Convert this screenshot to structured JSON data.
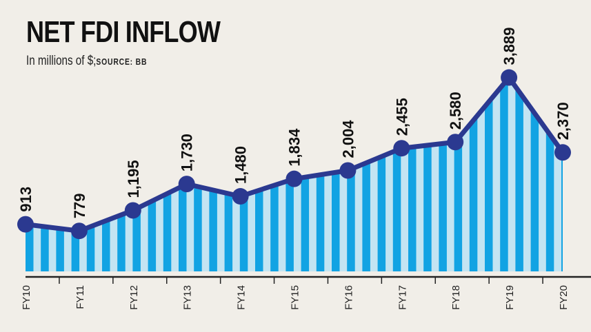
{
  "chart_data": {
    "type": "area",
    "title": "NET FDI INFLOW",
    "subtitle": "In millions of $;",
    "source": "SOURCE: BB",
    "categories": [
      "FY10",
      "FY11",
      "FY12",
      "FY13",
      "FY14",
      "FY15",
      "FY16",
      "FY17",
      "FY18",
      "FY19",
      "FY20"
    ],
    "values": [
      913,
      779,
      1195,
      1730,
      1480,
      1834,
      2004,
      2455,
      2580,
      3889,
      2370
    ],
    "value_labels": [
      "913",
      "779",
      "1,195",
      "1,730",
      "1,480",
      "1,834",
      "2,004",
      "2,455",
      "2,580",
      "3,889",
      "2,370"
    ],
    "xlabel": "",
    "ylabel": "",
    "ylim": [
      0,
      5400
    ],
    "colors": {
      "line": "#2b3990",
      "stripe_dark": "#12a3e3",
      "stripe_light": "#c3e4f2",
      "background": "#f1eee8"
    }
  }
}
